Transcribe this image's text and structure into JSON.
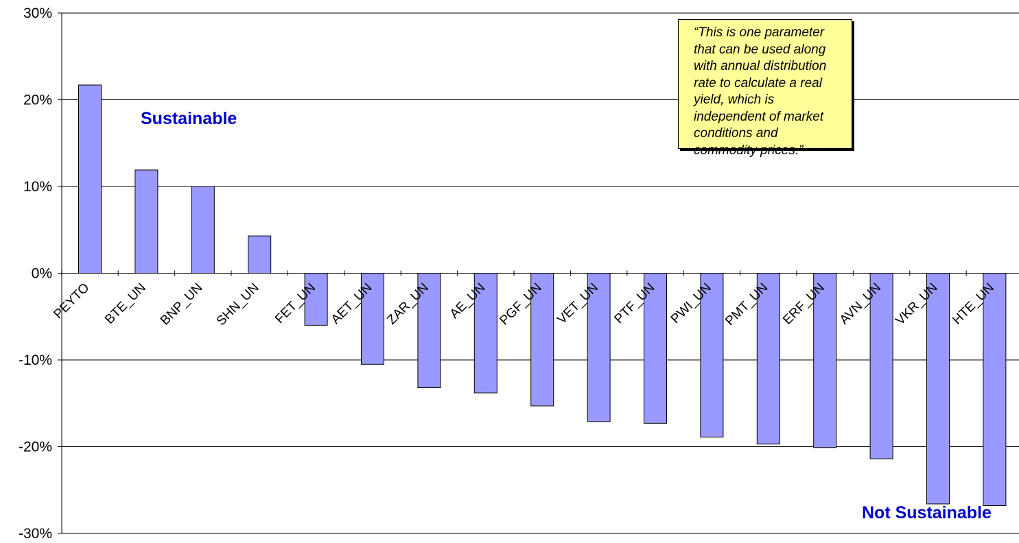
{
  "chart_data": {
    "type": "bar",
    "categories": [
      "PEYTO",
      "BTE_UN",
      "BNP_UN",
      "SHN_UN",
      "FET_UN",
      "AET_UN",
      "ZAR_UN",
      "AE_UN",
      "PGF_UN",
      "VET_UN",
      "PTF_UN",
      "PWI_UN",
      "PMT_UN",
      "ERF_UN",
      "AVN_UN",
      "VKR_UN",
      "HTE_UN"
    ],
    "values": [
      21.7,
      11.9,
      10.0,
      4.3,
      -6.0,
      -10.5,
      -13.2,
      -13.8,
      -15.3,
      -17.1,
      -17.3,
      -18.9,
      -19.7,
      -20.1,
      -21.4,
      -26.6,
      -26.8
    ],
    "ylim": [
      -30,
      30
    ],
    "yticks": [
      30,
      20,
      10,
      0,
      -10,
      -20,
      -30
    ],
    "ytick_labels": [
      "30%",
      "20%",
      "10%",
      "0%",
      "-10%",
      "-20%",
      "-30%"
    ],
    "title": "",
    "xlabel": "",
    "ylabel": "",
    "grid": true,
    "bar_color": "#9999ff",
    "annotations": {
      "sustainable": "Sustainable",
      "not_sustainable": "Not Sustainable",
      "label_color": "#0000cc"
    }
  },
  "quote": "“This is one parameter that can be used along with annual distribution rate to calculate a real yield, which is independent of market conditions and commodity prices.”",
  "quote_bg": "#ffff99"
}
